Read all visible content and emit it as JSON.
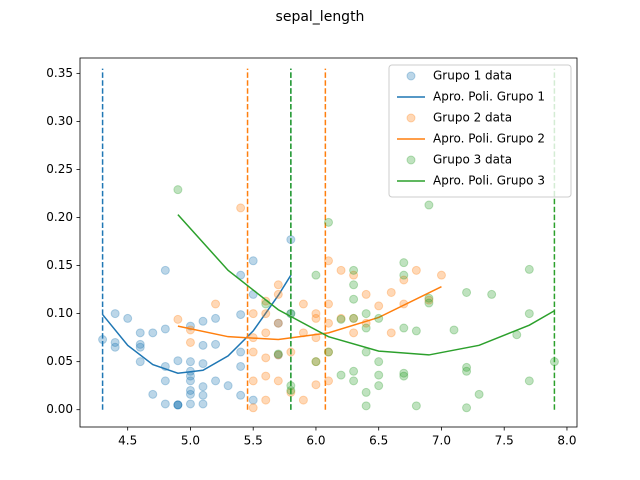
{
  "chart_data": {
    "type": "scatter-fit",
    "title": "sepal_length",
    "xlim": [
      4.12,
      8.08
    ],
    "ylim": [
      -0.018,
      0.366
    ],
    "xticks": [
      4.5,
      {
        "value": 5,
        "label": "5.0"
      },
      5.5,
      {
        "value": 6,
        "label": "6.0"
      },
      6.5,
      {
        "value": 7,
        "label": "7.0"
      },
      7.5,
      {
        "value": 8,
        "label": "8.0"
      }
    ],
    "yticks": [
      {
        "value": 0,
        "label": "0.00"
      },
      {
        "value": 0.05,
        "label": "0.05"
      },
      {
        "value": 0.1,
        "label": "0.10"
      },
      {
        "value": 0.15,
        "label": "0.15"
      },
      {
        "value": 0.2,
        "label": "0.20"
      },
      {
        "value": 0.25,
        "label": "0.25"
      },
      {
        "value": 0.3,
        "label": "0.30"
      },
      {
        "value": 0.35,
        "label": "0.35"
      }
    ],
    "legend": "upper right",
    "bounds_ylim": [
      0,
      0.355
    ],
    "series": [
      {
        "name": "Grupo 1 data",
        "kind": "scatter",
        "color": "#1f77b4",
        "x": [
          4.3,
          4.4,
          4.4,
          4.4,
          4.5,
          4.6,
          4.6,
          4.6,
          4.6,
          4.7,
          4.7,
          4.8,
          4.8,
          4.8,
          4.8,
          4.8,
          4.9,
          4.9,
          4.9,
          4.9,
          5.0,
          5.0,
          5.0,
          5.0,
          5.0,
          5.0,
          5.0,
          5.0,
          5.1,
          5.1,
          5.1,
          5.1,
          5.1,
          5.1,
          5.2,
          5.2,
          5.2,
          5.3,
          5.4,
          5.4,
          5.4,
          5.4,
          5.4,
          5.5,
          5.5,
          5.5,
          5.7,
          5.7,
          5.8,
          5.8
        ],
        "values": [
          0.073,
          0.07,
          0.1,
          0.065,
          0.095,
          0.08,
          0.068,
          0.05,
          0.065,
          0.08,
          0.016,
          0.145,
          0.084,
          0.03,
          0.006,
          0.045,
          0.005,
          0.051,
          0.005,
          0.005,
          0.087,
          0.05,
          0.04,
          0.03,
          0.035,
          0.02,
          0.006,
          0.016,
          0.092,
          0.067,
          0.048,
          0.024,
          0.006,
          0.015,
          0.095,
          0.068,
          0.03,
          0.025,
          0.14,
          0.099,
          0.06,
          0.045,
          0.015,
          0.155,
          0.12,
          0.01,
          0.09,
          0.057,
          0.177,
          0.1
        ]
      },
      {
        "name": "Apro. Poli. Grupo 1",
        "kind": "line",
        "color": "#1f77b4",
        "bounds": [
          4.3,
          5.8
        ],
        "x": [
          4.3,
          4.5,
          4.7,
          4.9,
          5.1,
          5.3,
          5.5,
          5.7,
          5.8
        ],
        "values": [
          0.099,
          0.067,
          0.047,
          0.038,
          0.041,
          0.056,
          0.082,
          0.119,
          0.14
        ]
      },
      {
        "name": "Grupo 2 data",
        "kind": "scatter",
        "color": "#ff7f0e",
        "x": [
          4.9,
          5.0,
          5.0,
          5.2,
          5.4,
          5.5,
          5.5,
          5.5,
          5.5,
          5.5,
          5.6,
          5.6,
          5.6,
          5.6,
          5.6,
          5.6,
          5.7,
          5.7,
          5.7,
          5.7,
          5.7,
          5.8,
          5.8,
          5.9,
          5.9,
          5.9,
          6.0,
          6.0,
          6.0,
          6.0,
          6.0,
          6.1,
          6.1,
          6.1,
          6.1,
          6.1,
          6.2,
          6.2,
          6.3,
          6.3,
          6.3,
          6.4,
          6.4,
          6.5,
          6.6,
          6.6,
          6.7,
          6.7,
          6.8,
          6.9,
          7.0
        ],
        "values": [
          0.094,
          0.083,
          0.07,
          0.11,
          0.21,
          0.1,
          0.075,
          0.06,
          0.03,
          0.002,
          0.113,
          0.1,
          0.08,
          0.054,
          0.035,
          0.01,
          0.13,
          0.12,
          0.09,
          0.057,
          0.03,
          0.06,
          0.018,
          0.11,
          0.08,
          0.01,
          0.1,
          0.095,
          0.075,
          0.05,
          0.026,
          0.155,
          0.11,
          0.09,
          0.06,
          0.03,
          0.145,
          0.095,
          0.14,
          0.095,
          0.08,
          0.12,
          0.09,
          0.108,
          0.122,
          0.08,
          0.135,
          0.11,
          0.145,
          0.114,
          0.14
        ]
      },
      {
        "name": "Apro. Poli. Grupo 2",
        "kind": "line",
        "color": "#ff7f0e",
        "bounds": [
          5.455,
          6.075
        ],
        "x": [
          4.9,
          5.3,
          5.7,
          6.1,
          6.5,
          7.0
        ],
        "values": [
          0.087,
          0.076,
          0.073,
          0.08,
          0.096,
          0.128
        ]
      },
      {
        "name": "Grupo 3 data",
        "kind": "scatter",
        "color": "#2ca02c",
        "x": [
          4.9,
          5.6,
          5.7,
          5.8,
          5.8,
          5.8,
          6.0,
          6.0,
          6.1,
          6.1,
          6.2,
          6.2,
          6.3,
          6.3,
          6.3,
          6.3,
          6.3,
          6.3,
          6.4,
          6.4,
          6.4,
          6.4,
          6.4,
          6.5,
          6.5,
          6.5,
          6.5,
          6.7,
          6.7,
          6.7,
          6.7,
          6.7,
          6.8,
          6.8,
          6.9,
          6.9,
          6.9,
          7.1,
          7.2,
          7.2,
          7.2,
          7.2,
          7.3,
          7.4,
          7.6,
          7.7,
          7.7,
          7.7,
          7.9
        ],
        "values": [
          0.229,
          0.11,
          0.058,
          0.1,
          0.025,
          0.02,
          0.05,
          0.14,
          0.195,
          0.06,
          0.094,
          0.036,
          0.145,
          0.13,
          0.115,
          0.095,
          0.04,
          0.03,
          0.1,
          0.085,
          0.06,
          0.018,
          0.004,
          0.095,
          0.05,
          0.036,
          0.025,
          0.153,
          0.14,
          0.085,
          0.038,
          0.035,
          0.082,
          0.004,
          0.116,
          0.111,
          0.213,
          0.083,
          0.122,
          0.044,
          0.04,
          0.002,
          0.016,
          0.12,
          0.078,
          0.146,
          0.1,
          0.03,
          0.05
        ]
      },
      {
        "name": "Apro. Poli. Grupo 3",
        "kind": "line",
        "color": "#2ca02c",
        "bounds": [
          5.8,
          7.9
        ],
        "x": [
          4.9,
          5.3,
          5.7,
          6.1,
          6.5,
          6.9,
          7.3,
          7.7,
          7.9
        ],
        "values": [
          0.203,
          0.145,
          0.104,
          0.076,
          0.061,
          0.057,
          0.067,
          0.088,
          0.103
        ]
      }
    ]
  }
}
